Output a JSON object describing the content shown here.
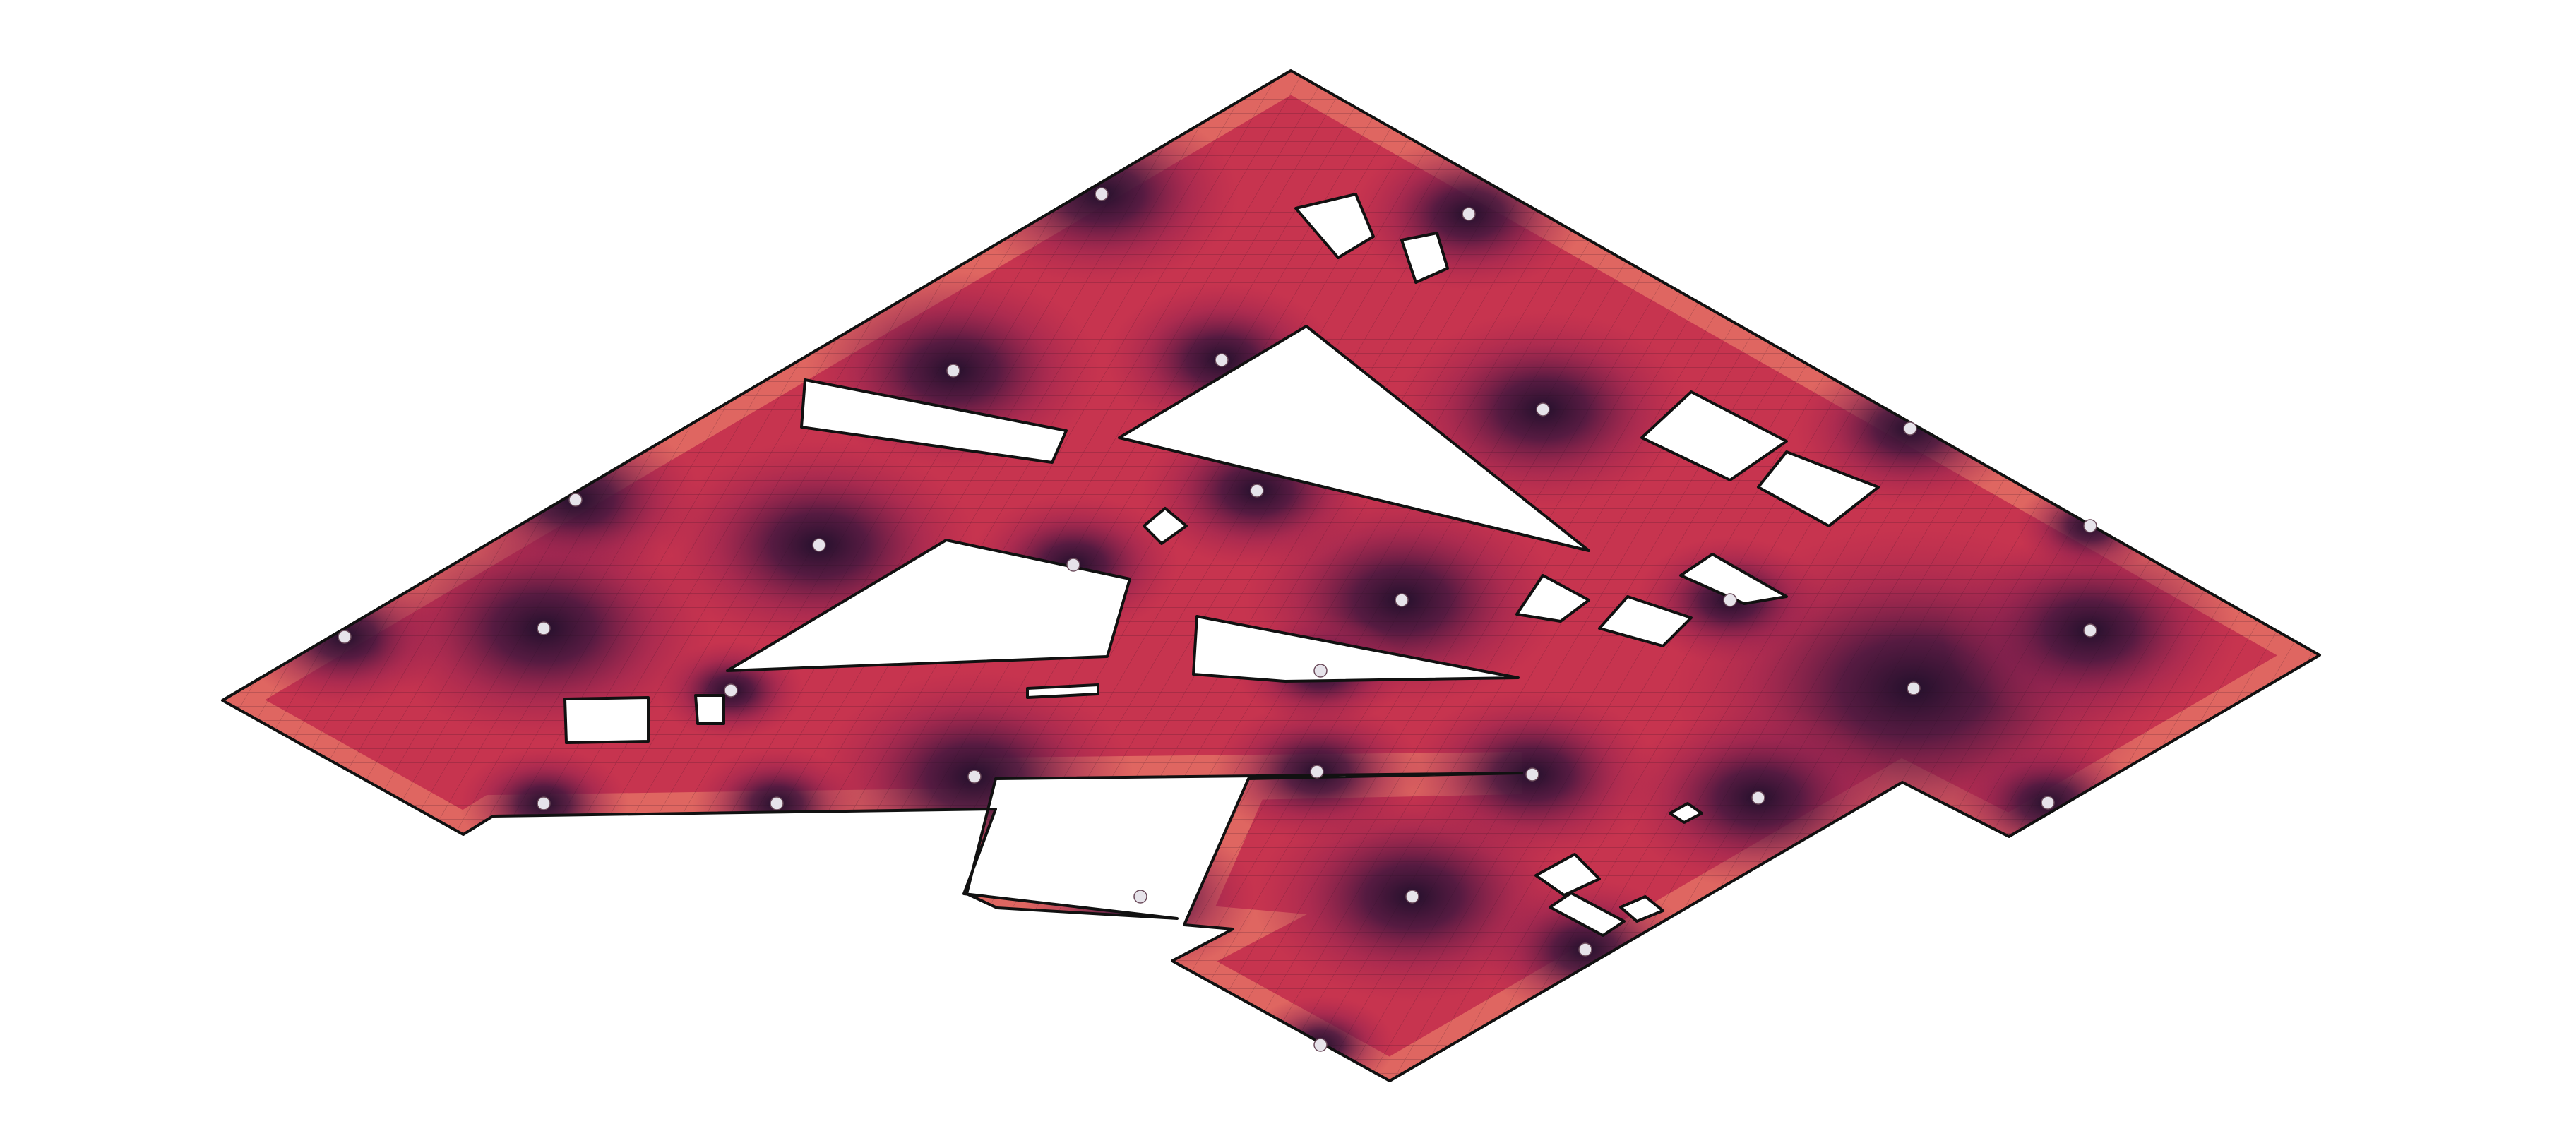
{
  "figure": {
    "description_title": "",
    "palette": {
      "background": "#ffffff",
      "outline": "#111111",
      "mesh_line": "#2a0f22",
      "node_fill": "#e6e3ea",
      "colormap": [
        "#2b1130",
        "#4a1840",
        "#7a1f4e",
        "#a8264f",
        "#cf3a4e",
        "#e85e4c",
        "#f39071",
        "#f7c2a8",
        "#fbe3d6"
      ]
    }
  }
}
